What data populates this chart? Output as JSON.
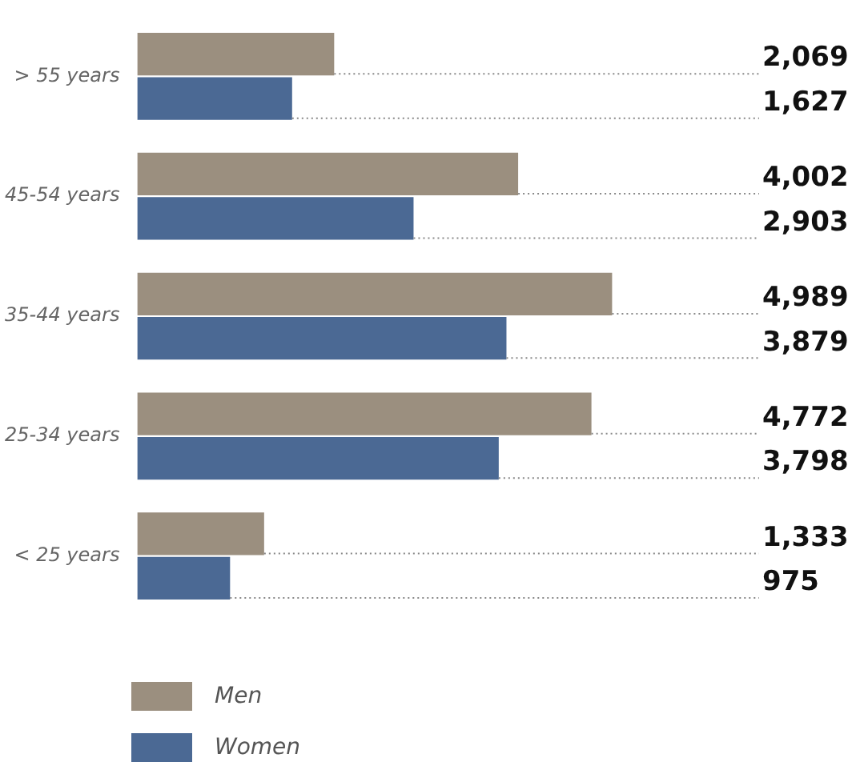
{
  "chart_data": {
    "type": "bar",
    "orientation": "horizontal",
    "categories": [
      "> 55 years",
      "45-54 years",
      "35-44 years",
      "25-34 years",
      "< 25 years"
    ],
    "xlim": [
      0,
      6500
    ],
    "legend": "bottom left",
    "tick_labels": "y",
    "series": [
      {
        "name": "Men",
        "color": "#9b8f7f",
        "values": [
          2069,
          4002,
          4989,
          4772,
          1333
        ],
        "value_labels": [
          "2,069",
          "4,002",
          "4,989",
          "4,772",
          "1,333"
        ]
      },
      {
        "name": "Women",
        "color": "#4b6994",
        "values": [
          1627,
          2903,
          3879,
          3798,
          975
        ],
        "value_labels": [
          "1,627",
          "2,903",
          "3,879",
          "3,798",
          "975"
        ]
      }
    ]
  }
}
